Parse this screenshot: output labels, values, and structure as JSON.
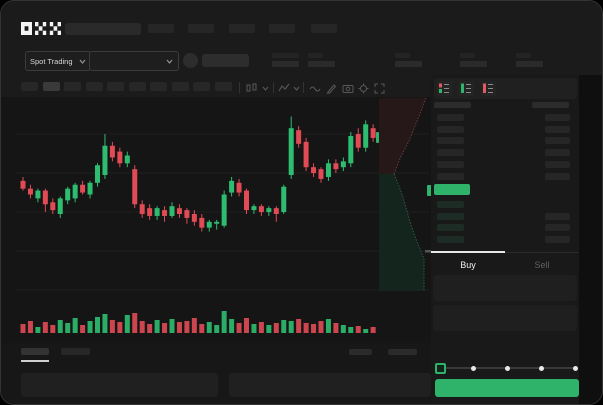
{
  "app": {
    "name": "OKX",
    "logo_text": "OKX"
  },
  "header": {
    "search": {
      "placeholder": ""
    },
    "nav_placeholder_count": 5
  },
  "market_bar": {
    "mode_selector": {
      "label": "Spot Trading",
      "chevron_icon": "chevron-down-icon"
    },
    "pair_selector": {
      "value": "",
      "chevron_icon": "chevron-down-icon"
    },
    "stat_placeholder_count": 5
  },
  "chart_toolbar": {
    "interval_placeholder_count": 10,
    "active_interval_index": 1,
    "icons": [
      "candle-style-icon",
      "chevron-down-icon",
      "indicators-icon",
      "chevron-down-icon",
      "line-tool-icon",
      "draw-tool-icon",
      "camera-icon",
      "settings-icon",
      "fullscreen-icon"
    ]
  },
  "order_book": {
    "view_toggle_icons": [
      "orderbook-both-icon",
      "orderbook-bids-icon",
      "orderbook-asks-icon"
    ],
    "ask_row_count": 6,
    "bid_row_count": 4,
    "bid_rows_with_amount": 3,
    "mid_price_highlight_color": "#2fb269"
  },
  "trade_panel": {
    "tabs": [
      {
        "label": "Buy",
        "active": true
      },
      {
        "label": "Sell",
        "active": false
      }
    ],
    "amount_slider": {
      "positions": 5,
      "value_index": 0
    },
    "submit_button": {
      "label": "",
      "color": "#2fb269"
    }
  },
  "bottom_bar": {
    "tab_placeholder_count": 2,
    "active_tab_index": 0,
    "right_placeholder_count": 2
  },
  "colors": {
    "up": "#2ebd70",
    "down": "#e04b56",
    "accent_green": "#2fb269",
    "depth_ask_fill": "#261819",
    "depth_ask_line": "#6b3a3a",
    "depth_bid_fill": "#122username5201e",
    "depth_bid_line": "#2f5a4c",
    "grid": "#1e1e1e"
  },
  "chart_data": {
    "type": "candlestick",
    "title": "",
    "xlabel": "",
    "ylabel": "",
    "price_scale": [
      0,
      100
    ],
    "grid": "horizontal-faint",
    "candles": [
      [
        57,
        59,
        52,
        53
      ],
      [
        53,
        55,
        48,
        50
      ],
      [
        48,
        53,
        46,
        52
      ],
      [
        52,
        53,
        41,
        45
      ],
      [
        46,
        48,
        40,
        42
      ],
      [
        40,
        49,
        38,
        48
      ],
      [
        47,
        54,
        45,
        53
      ],
      [
        48,
        56,
        46,
        55
      ],
      [
        55,
        57,
        50,
        51
      ],
      [
        50,
        57,
        48,
        56
      ],
      [
        56,
        66,
        54,
        65
      ],
      [
        60,
        81,
        58,
        75
      ],
      [
        75,
        77,
        67,
        69
      ],
      [
        72,
        74,
        64,
        66
      ],
      [
        66,
        72,
        64,
        70
      ],
      [
        63,
        65,
        43,
        45
      ],
      [
        45,
        47,
        38,
        40
      ],
      [
        43,
        45,
        37,
        39
      ],
      [
        39,
        44,
        37,
        43
      ],
      [
        42,
        44,
        36,
        39
      ],
      [
        39,
        46,
        38,
        44
      ],
      [
        43,
        45,
        38,
        40
      ],
      [
        42,
        43,
        35,
        38
      ],
      [
        40,
        42,
        34,
        36
      ],
      [
        38,
        40,
        31,
        33
      ],
      [
        33,
        37,
        31,
        36
      ],
      [
        35,
        37,
        32,
        36
      ],
      [
        34,
        52,
        33,
        50
      ],
      [
        51,
        59,
        49,
        57
      ],
      [
        56,
        58,
        49,
        51
      ],
      [
        52,
        53,
        40,
        42
      ],
      [
        42,
        45,
        40,
        44
      ],
      [
        44,
        45,
        39,
        41
      ],
      [
        41,
        44,
        39,
        43
      ],
      [
        43,
        44,
        36,
        40
      ],
      [
        41,
        55,
        40,
        54
      ],
      [
        60,
        90,
        58,
        84
      ],
      [
        83,
        85,
        74,
        76
      ],
      [
        77,
        79,
        62,
        64
      ],
      [
        64,
        66,
        59,
        61
      ],
      [
        63,
        64,
        56,
        58
      ],
      [
        59,
        68,
        57,
        66
      ],
      [
        66,
        68,
        61,
        63
      ],
      [
        64,
        69,
        62,
        67
      ],
      [
        66,
        82,
        64,
        80
      ],
      [
        81,
        84,
        72,
        74
      ],
      [
        74,
        88,
        72,
        86
      ],
      [
        84,
        86,
        77,
        79
      ]
    ],
    "volume": [
      9,
      12,
      6,
      11,
      8,
      13,
      10,
      15,
      8,
      12,
      16,
      19,
      13,
      11,
      18,
      20,
      12,
      9,
      13,
      10,
      14,
      11,
      12,
      15,
      9,
      11,
      8,
      22,
      14,
      10,
      15,
      9,
      11,
      8,
      10,
      13,
      12,
      14,
      10,
      9,
      12,
      14,
      10,
      8,
      6,
      7,
      4,
      6
    ],
    "depth_profile": {
      "mid_point": [
        393,
        173
      ],
      "asks_curve": [
        [
          425,
          97
        ],
        [
          420,
          110
        ],
        [
          414,
          125
        ],
        [
          408,
          140
        ],
        [
          400,
          155
        ],
        [
          396,
          165
        ],
        [
          393,
          173
        ]
      ],
      "bids_curve": [
        [
          393,
          173
        ],
        [
          398,
          185
        ],
        [
          402,
          196
        ],
        [
          406,
          210
        ],
        [
          410,
          224
        ],
        [
          415,
          238
        ],
        [
          420,
          250
        ],
        [
          423,
          258
        ],
        [
          423,
          290
        ]
      ],
      "last_price_marker_color": "#2fb269"
    }
  }
}
